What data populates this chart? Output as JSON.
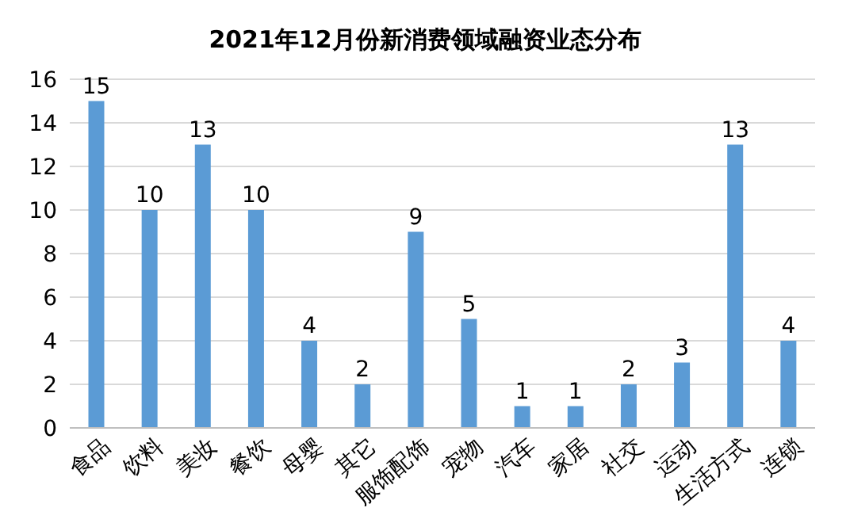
{
  "chart_data": {
    "type": "bar",
    "title": "2021年12月份新消费领域融资业态分布",
    "categories": [
      "食品",
      "饮料",
      "美妆",
      "餐饮",
      "母婴",
      "其它",
      "服饰配饰",
      "宠物",
      "汽车",
      "家居",
      "社交",
      "运动",
      "生活方式",
      "连锁"
    ],
    "values": [
      15,
      10,
      13,
      10,
      4,
      2,
      9,
      5,
      1,
      1,
      2,
      3,
      13,
      4
    ],
    "color": "#5b9bd5",
    "ylim": [
      0,
      16
    ],
    "yticks": [
      0,
      2,
      4,
      6,
      8,
      10,
      12,
      14,
      16
    ],
    "grid": "y",
    "data_labels": true
  }
}
